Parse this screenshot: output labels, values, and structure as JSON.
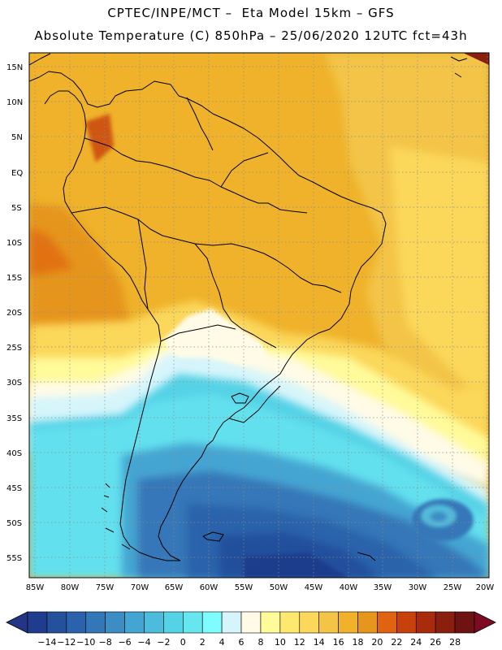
{
  "header": {
    "line1": "CPTEC/INPE/MCT –  Eta Model 15km – GFS",
    "line2": "Absolute Temperature (C) 850hPa – 25/06/2020 12UTC fct=43h"
  },
  "map": {
    "lat_labels": [
      "15N",
      "10N",
      "5N",
      "EQ",
      "5S",
      "10S",
      "15S",
      "20S",
      "25S",
      "30S",
      "35S",
      "40S",
      "45S",
      "50S",
      "55S"
    ],
    "lon_labels": [
      "85W",
      "80W",
      "75W",
      "70W",
      "65W",
      "60W",
      "55W",
      "50W",
      "45W",
      "40W",
      "35W",
      "30W",
      "25W",
      "20W"
    ]
  },
  "colorbar": {
    "labels": [
      "-14",
      "-12",
      "-10",
      "-8",
      "-6",
      "-4",
      "-2",
      "0",
      "2",
      "4",
      "6",
      "8",
      "10",
      "12",
      "14",
      "16",
      "18",
      "20",
      "22",
      "24",
      "26",
      "28"
    ],
    "colors": [
      "#1f3d8c",
      "#24509c",
      "#2a63ab",
      "#3477b8",
      "#3d8dc5",
      "#44a5d2",
      "#4cbbdc",
      "#55d2e6",
      "#66e6ee",
      "#7ffcff",
      "#d6f5fb",
      "#fffbe6",
      "#fffa9a",
      "#ffe870",
      "#fbd75a",
      "#f3c446",
      "#efb22a",
      "#e6951d",
      "#e06410",
      "#c8400b",
      "#a82c0b",
      "#8b1f0e",
      "#6e1212"
    ],
    "under_color": "#243585",
    "over_color": "#7d0b23"
  }
}
